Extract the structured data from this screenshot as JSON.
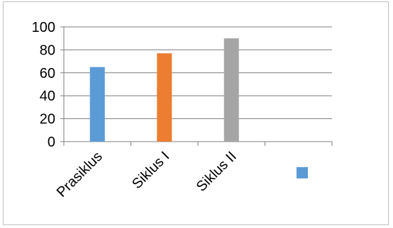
{
  "chart_data": {
    "type": "bar",
    "categories": [
      "Prasiklus",
      "Siklus I",
      "Siklus II"
    ],
    "values": [
      65,
      77,
      90
    ],
    "colors": [
      "#5b9bd5",
      "#ed7d31",
      "#a5a5a5"
    ],
    "ylim": [
      0,
      100
    ],
    "yticks": [
      0,
      20,
      40,
      60,
      80,
      100
    ],
    "grid": true,
    "legend": {
      "position": "bottom-right",
      "entries": [
        {
          "label": "",
          "color": "#5b9bd5"
        }
      ]
    },
    "title": "",
    "xlabel": "",
    "ylabel": ""
  }
}
